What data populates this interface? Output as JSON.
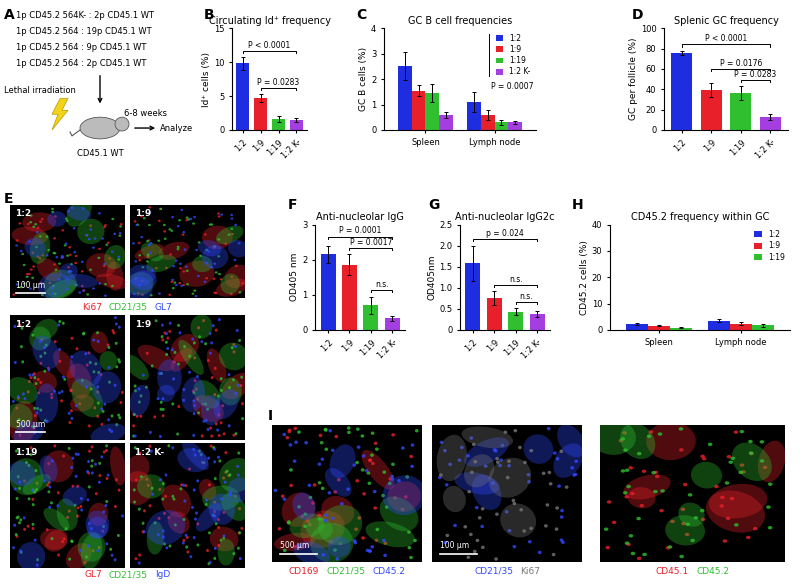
{
  "panel_labels": [
    "A",
    "B",
    "C",
    "D",
    "E",
    "F",
    "G",
    "H",
    "I"
  ],
  "schematic": {
    "groups": [
      "1p CD45.2 564K- : 2p CD45.1 WT",
      "1p CD45.2 564 : 19p CD45.1 WT",
      "1p CD45.2 564 : 9p CD45.1 WT",
      "1p CD45.2 564 : 2p CD45.1 WT"
    ],
    "treatment": "Lethal irradiation",
    "duration": "6-8 weeks",
    "host": "CD45.1 WT",
    "endpoint": "Analyze"
  },
  "chart_data": [
    {
      "type": "bar",
      "title": "Circulating Id⁺ frequency",
      "y_label": "Id⁺ cells (%)",
      "categories": [
        "1:2",
        "1:9",
        "1:19",
        "1:2 K-"
      ],
      "values": [
        9.8,
        4.7,
        1.6,
        1.4
      ],
      "errors": [
        1.0,
        0.6,
        0.4,
        0.3
      ],
      "colors": [
        "#1f2de0",
        "#e8202a",
        "#2fbf2f",
        "#a53ee0"
      ],
      "ylim": [
        0,
        15
      ],
      "yticks": [
        0,
        5,
        10,
        15
      ],
      "annotations": [
        {
          "text": "P < 0.0001",
          "between": [
            "1:2",
            "1:2 K-"
          ]
        },
        {
          "text": "P = 0.0283",
          "between": [
            "1:9",
            "1:2 K-"
          ]
        }
      ]
    },
    {
      "type": "bar",
      "title": "GC B cell frequencies",
      "y_label": "GC B cells (%)",
      "categories": [
        "Spleen",
        "Lymph node"
      ],
      "series": [
        {
          "name": "1:2",
          "color": "#1f2de0",
          "values": [
            2.5,
            1.1
          ],
          "errors": [
            0.55,
            0.4
          ]
        },
        {
          "name": "1:9",
          "color": "#e8202a",
          "values": [
            1.55,
            0.6
          ],
          "errors": [
            0.2,
            0.2
          ]
        },
        {
          "name": "1:19",
          "color": "#2fbf2f",
          "values": [
            1.45,
            0.3
          ],
          "errors": [
            0.35,
            0.1
          ]
        },
        {
          "name": "1:2 K-",
          "color": "#a53ee0",
          "values": [
            0.6,
            0.3
          ],
          "errors": [
            0.12,
            0.07
          ]
        }
      ],
      "ylim": [
        0,
        4
      ],
      "yticks": [
        0,
        1,
        2,
        3,
        4
      ],
      "legend": "upper right",
      "annotations": [
        {
          "text": "P = 0.0007",
          "between": [
            "1:2",
            "1:2 K-"
          ]
        }
      ]
    },
    {
      "type": "bar",
      "title": "Splenic GC frequency",
      "y_label": "GC per follicle (%)",
      "categories": [
        "1:2",
        "1:9",
        "1:19",
        "1:2 K-"
      ],
      "values": [
        76,
        39,
        36,
        13
      ],
      "errors": [
        2,
        7,
        7,
        3
      ],
      "colors": [
        "#1f2de0",
        "#e8202a",
        "#2fbf2f",
        "#a53ee0"
      ],
      "ylim": [
        0,
        100
      ],
      "yticks": [
        0,
        20,
        40,
        60,
        80,
        100
      ],
      "annotations": [
        {
          "text": "P < 0.0001",
          "between": [
            "1:2",
            "1:2 K-"
          ]
        },
        {
          "text": "P = 0.0176",
          "between": [
            "1:9",
            "1:2 K-"
          ]
        },
        {
          "text": "P = 0.0283",
          "between": [
            "1:19",
            "1:2 K-"
          ]
        }
      ]
    },
    {
      "type": "bar",
      "title": "Anti-nucleolar IgG",
      "y_label": "OD405 nm",
      "categories": [
        "1:2",
        "1:9",
        "1:19",
        "1:2 K-"
      ],
      "values": [
        2.15,
        1.85,
        0.7,
        0.33
      ],
      "errors": [
        0.25,
        0.3,
        0.25,
        0.07
      ],
      "colors": [
        "#1f2de0",
        "#e8202a",
        "#2fbf2f",
        "#a53ee0"
      ],
      "ylim": [
        0,
        3
      ],
      "yticks": [
        0,
        1,
        2,
        3
      ],
      "annotations": [
        {
          "text": "P = 0.0001",
          "between": [
            "1:2",
            "1:2 K-"
          ]
        },
        {
          "text": "P = 0.0017",
          "between": [
            "1:9",
            "1:2 K-"
          ]
        },
        {
          "text": "n.s.",
          "between": [
            "1:19",
            "1:2 K-"
          ]
        }
      ]
    },
    {
      "type": "bar",
      "title": "Anti-nucleolar IgG2c",
      "y_label": "OD405nm",
      "categories": [
        "1:2",
        "1:9",
        "1:19",
        "1:2 K-"
      ],
      "values": [
        1.58,
        0.75,
        0.43,
        0.38
      ],
      "errors": [
        0.42,
        0.17,
        0.08,
        0.07
      ],
      "colors": [
        "#1f2de0",
        "#e8202a",
        "#2fbf2f",
        "#a53ee0"
      ],
      "ylim": [
        0,
        2.5
      ],
      "yticks": [
        0,
        0.5,
        1.0,
        1.5,
        2.0,
        2.5
      ],
      "annotations": [
        {
          "text": "p = 0.024",
          "between": [
            "1:2",
            "1:2 K-"
          ]
        },
        {
          "text": "n.s.",
          "between": [
            "1:9",
            "1:2 K-"
          ]
        },
        {
          "text": "n.s.",
          "between": [
            "1:19",
            "1:2 K-"
          ]
        }
      ]
    },
    {
      "type": "bar",
      "title": "CD45.2 frequency within GC",
      "y_label": "CD45.2 cells (%)",
      "categories": [
        "Spleen",
        "Lymph node"
      ],
      "series": [
        {
          "name": "1:2",
          "color": "#1f2de0",
          "values": [
            2.2,
            3.5
          ],
          "errors": [
            0.4,
            0.5
          ]
        },
        {
          "name": "1:9",
          "color": "#e8202a",
          "values": [
            1.6,
            2.4
          ],
          "errors": [
            0.3,
            0.6
          ]
        },
        {
          "name": "1:19",
          "color": "#2fbf2f",
          "values": [
            0.8,
            1.8
          ],
          "errors": [
            0.2,
            0.6
          ]
        }
      ],
      "ylim": [
        0,
        40
      ],
      "yticks": [
        0,
        10,
        20,
        30,
        40
      ],
      "legend": "upper right"
    }
  ],
  "micrographs": {
    "E_top": {
      "labels": [
        "1:2",
        "1:9"
      ],
      "scale_bar": "100 µm",
      "channels": [
        {
          "text": "Ki67",
          "color": "#e8202a"
        },
        {
          "text": "CD21/35",
          "color": "#2fbf2f"
        },
        {
          "text": "GL7",
          "color": "#3048ff"
        }
      ]
    },
    "E_grid": {
      "labels": [
        "1:2",
        "1:9",
        "1:19",
        "1:2 K-"
      ],
      "scale_bar": "500 µm",
      "channels": [
        {
          "text": "GL7",
          "color": "#e8202a"
        },
        {
          "text": "CD21/35",
          "color": "#2fbf2f"
        },
        {
          "text": "IgD",
          "color": "#3048ff"
        }
      ]
    },
    "I": [
      {
        "scale_bar": "500 µm",
        "channels": [
          {
            "text": "CD169",
            "color": "#e8202a"
          },
          {
            "text": "CD21/35",
            "color": "#2fbf2f"
          },
          {
            "text": "CD45.2",
            "color": "#3048ff"
          }
        ]
      },
      {
        "scale_bar": "100 µm",
        "channels": [
          {
            "text": "CD21/35",
            "color": "#3048ff"
          },
          {
            "text": "Ki67",
            "color": "#777777"
          }
        ]
      },
      {
        "channels": [
          {
            "text": "CD45.1",
            "color": "#e8202a"
          },
          {
            "text": "CD45.2",
            "color": "#2fbf2f"
          }
        ]
      }
    ]
  }
}
